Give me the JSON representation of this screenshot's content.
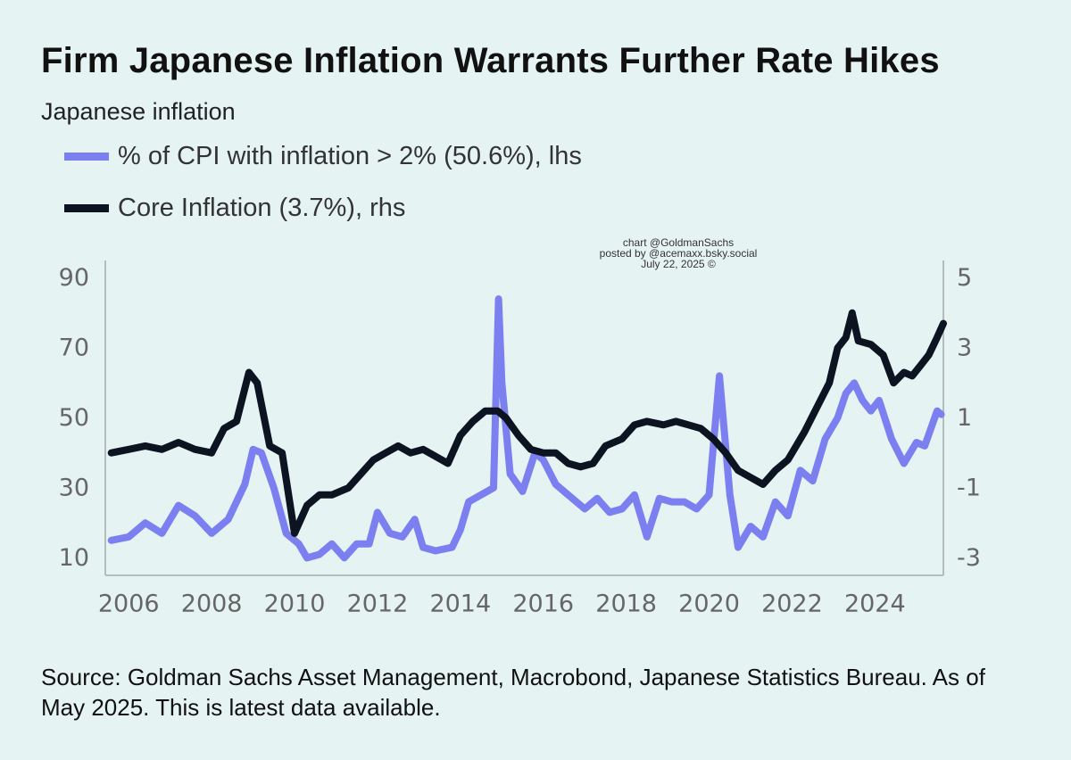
{
  "title": "Firm Japanese Inflation Warrants Further Rate Hikes",
  "subtitle": "Japanese inflation",
  "credit": [
    "chart @GoldmanSachs",
    "posted by @acemaxx.bsky.social",
    "July 22, 2025 ©"
  ],
  "source": "Source: Goldman Sachs Asset Management, Macrobond, Japanese Statistics Bureau. As of May 2025. This is latest data available.",
  "chart_data": {
    "type": "line",
    "title": "Japanese inflation",
    "xlim": [
      2005.5,
      2025.5
    ],
    "x_ticks": [
      "2006",
      "2008",
      "2010",
      "2012",
      "2014",
      "2016",
      "2018",
      "2020",
      "2022",
      "2024"
    ],
    "left_axis": {
      "label": "lhs",
      "range": [
        5,
        95
      ],
      "ticks": [
        "90",
        "70",
        "50",
        "30",
        "10"
      ]
    },
    "right_axis": {
      "label": "rhs",
      "range": [
        -3.5,
        5.5
      ],
      "ticks": [
        "5",
        "3",
        "1",
        "-1",
        "-3"
      ]
    },
    "series": [
      {
        "name": "% of CPI with inflation > 2% (50.6%), lhs",
        "axis": "left",
        "color": "#7b7ff0",
        "points": [
          [
            2005.58,
            15
          ],
          [
            2006.0,
            16
          ],
          [
            2006.4,
            20
          ],
          [
            2006.8,
            17
          ],
          [
            2007.2,
            25
          ],
          [
            2007.6,
            22
          ],
          [
            2008.0,
            17
          ],
          [
            2008.4,
            21
          ],
          [
            2008.8,
            31
          ],
          [
            2009.0,
            41
          ],
          [
            2009.2,
            40
          ],
          [
            2009.5,
            30
          ],
          [
            2009.8,
            17
          ],
          [
            2010.1,
            14
          ],
          [
            2010.3,
            10
          ],
          [
            2010.6,
            11
          ],
          [
            2010.9,
            14
          ],
          [
            2011.2,
            10
          ],
          [
            2011.5,
            14
          ],
          [
            2011.8,
            14
          ],
          [
            2012.0,
            23
          ],
          [
            2012.3,
            17
          ],
          [
            2012.6,
            16
          ],
          [
            2012.9,
            21
          ],
          [
            2013.1,
            13
          ],
          [
            2013.4,
            12
          ],
          [
            2013.8,
            13
          ],
          [
            2014.0,
            18
          ],
          [
            2014.2,
            26
          ],
          [
            2014.5,
            28
          ],
          [
            2014.8,
            30
          ],
          [
            2014.92,
            84
          ],
          [
            2015.0,
            60
          ],
          [
            2015.2,
            34
          ],
          [
            2015.5,
            29
          ],
          [
            2015.8,
            40
          ],
          [
            2016.0,
            38
          ],
          [
            2016.3,
            31
          ],
          [
            2016.6,
            28
          ],
          [
            2017.0,
            24
          ],
          [
            2017.3,
            27
          ],
          [
            2017.6,
            23
          ],
          [
            2017.9,
            24
          ],
          [
            2018.2,
            28
          ],
          [
            2018.5,
            16
          ],
          [
            2018.8,
            27
          ],
          [
            2019.1,
            26
          ],
          [
            2019.4,
            26
          ],
          [
            2019.7,
            24
          ],
          [
            2020.0,
            28
          ],
          [
            2020.25,
            62
          ],
          [
            2020.5,
            28
          ],
          [
            2020.7,
            13
          ],
          [
            2021.0,
            19
          ],
          [
            2021.3,
            16
          ],
          [
            2021.6,
            26
          ],
          [
            2021.9,
            22
          ],
          [
            2022.2,
            35
          ],
          [
            2022.5,
            32
          ],
          [
            2022.8,
            44
          ],
          [
            2023.1,
            50
          ],
          [
            2023.3,
            57
          ],
          [
            2023.5,
            60
          ],
          [
            2023.7,
            55
          ],
          [
            2023.9,
            52
          ],
          [
            2024.1,
            55
          ],
          [
            2024.4,
            44
          ],
          [
            2024.7,
            37
          ],
          [
            2025.0,
            43
          ],
          [
            2025.2,
            42
          ],
          [
            2025.5,
            52
          ],
          [
            2025.6,
            51
          ]
        ]
      },
      {
        "name": "Core Inflation (3.7%), rhs",
        "axis": "right",
        "color": "#0c1321",
        "points": [
          [
            2005.58,
            0.0
          ],
          [
            2006.0,
            0.1
          ],
          [
            2006.4,
            0.2
          ],
          [
            2006.8,
            0.1
          ],
          [
            2007.2,
            0.3
          ],
          [
            2007.6,
            0.1
          ],
          [
            2008.0,
            0.0
          ],
          [
            2008.3,
            0.7
          ],
          [
            2008.6,
            0.9
          ],
          [
            2008.9,
            2.3
          ],
          [
            2009.1,
            2.0
          ],
          [
            2009.4,
            0.2
          ],
          [
            2009.7,
            0.0
          ],
          [
            2010.0,
            -2.3
          ],
          [
            2010.3,
            -1.5
          ],
          [
            2010.6,
            -1.2
          ],
          [
            2010.9,
            -1.2
          ],
          [
            2011.3,
            -1.0
          ],
          [
            2011.6,
            -0.6
          ],
          [
            2011.9,
            -0.2
          ],
          [
            2012.2,
            0.0
          ],
          [
            2012.5,
            0.2
          ],
          [
            2012.8,
            0.0
          ],
          [
            2013.1,
            0.1
          ],
          [
            2013.4,
            -0.1
          ],
          [
            2013.7,
            -0.3
          ],
          [
            2014.0,
            0.5
          ],
          [
            2014.3,
            0.9
          ],
          [
            2014.6,
            1.2
          ],
          [
            2014.9,
            1.2
          ],
          [
            2015.1,
            1.0
          ],
          [
            2015.4,
            0.5
          ],
          [
            2015.7,
            0.1
          ],
          [
            2016.0,
            0.0
          ],
          [
            2016.3,
            0.0
          ],
          [
            2016.6,
            -0.3
          ],
          [
            2016.9,
            -0.4
          ],
          [
            2017.2,
            -0.3
          ],
          [
            2017.5,
            0.2
          ],
          [
            2017.9,
            0.4
          ],
          [
            2018.2,
            0.8
          ],
          [
            2018.5,
            0.9
          ],
          [
            2018.9,
            0.8
          ],
          [
            2019.2,
            0.9
          ],
          [
            2019.5,
            0.8
          ],
          [
            2019.8,
            0.7
          ],
          [
            2020.1,
            0.4
          ],
          [
            2020.4,
            0.0
          ],
          [
            2020.7,
            -0.5
          ],
          [
            2021.0,
            -0.7
          ],
          [
            2021.3,
            -0.9
          ],
          [
            2021.6,
            -0.5
          ],
          [
            2021.9,
            -0.2
          ],
          [
            2022.1,
            0.2
          ],
          [
            2022.3,
            0.6
          ],
          [
            2022.6,
            1.3
          ],
          [
            2022.9,
            2.0
          ],
          [
            2023.1,
            3.0
          ],
          [
            2023.3,
            3.3
          ],
          [
            2023.45,
            4.0
          ],
          [
            2023.6,
            3.2
          ],
          [
            2023.9,
            3.1
          ],
          [
            2024.2,
            2.8
          ],
          [
            2024.45,
            2.0
          ],
          [
            2024.7,
            2.3
          ],
          [
            2024.9,
            2.2
          ],
          [
            2025.1,
            2.5
          ],
          [
            2025.3,
            2.8
          ],
          [
            2025.5,
            3.3
          ],
          [
            2025.65,
            3.7
          ]
        ]
      }
    ],
    "grid": false,
    "legend_position": "top-left"
  },
  "colors": {
    "background": "#e6f3f3",
    "axis_line": "#b5bcbe",
    "tick_text": "#666666"
  }
}
